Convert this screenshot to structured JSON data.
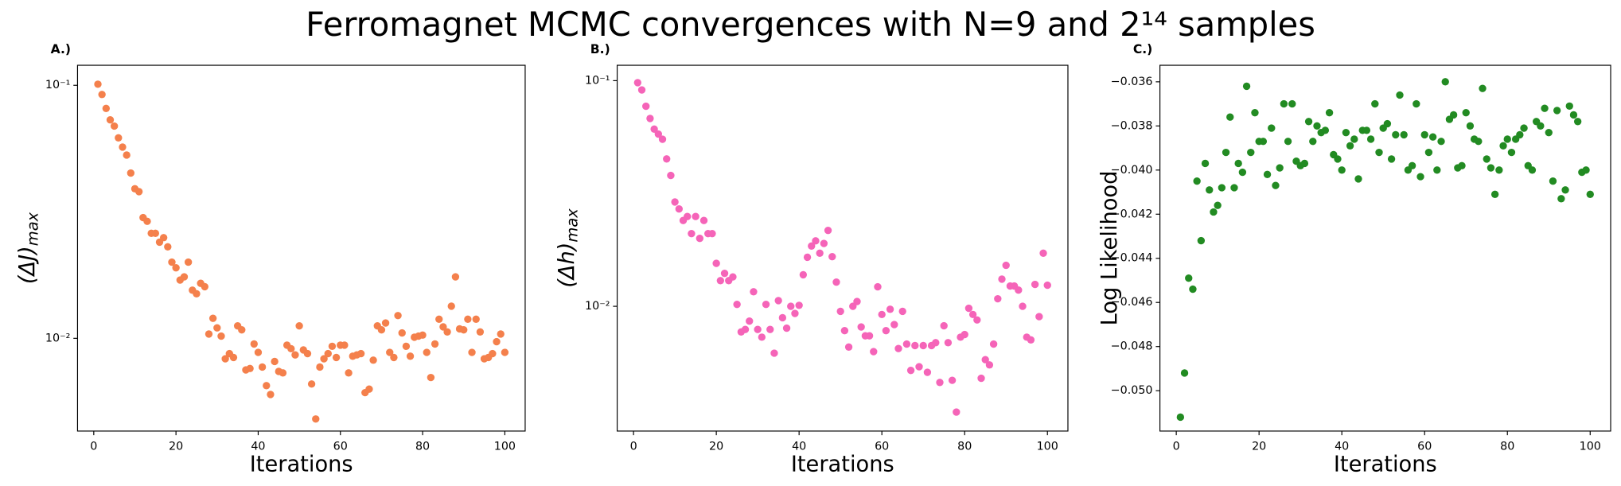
{
  "title": "Ferromagnet MCMC convergences with N=9 and 2¹⁴ samples",
  "chart_data": [
    {
      "type": "scatter",
      "panel_label": "A.)",
      "xlabel": "Iterations",
      "ylabel": "(ΔJ)",
      "ylabel_sub": "max",
      "color": "#f4804c",
      "log_y": true,
      "xlim": [
        -3.95,
        104.95
      ],
      "xticks": [
        0,
        20,
        40,
        60,
        80,
        100
      ],
      "ylim": [
        0.0043,
        0.12
      ],
      "yticks": [
        {
          "value": 0.1,
          "label": "10⁻¹"
        },
        {
          "value": 0.01,
          "label": "10⁻²"
        }
      ],
      "x": [
        1,
        2,
        3,
        4,
        5,
        6,
        7,
        8,
        9,
        10,
        11,
        12,
        13,
        14,
        15,
        16,
        17,
        18,
        19,
        20,
        21,
        22,
        23,
        24,
        25,
        26,
        27,
        28,
        29,
        30,
        31,
        32,
        33,
        34,
        35,
        36,
        37,
        38,
        39,
        40,
        41,
        42,
        43,
        44,
        45,
        46,
        47,
        48,
        49,
        50,
        51,
        52,
        53,
        54,
        55,
        56,
        57,
        58,
        59,
        60,
        61,
        62,
        63,
        64,
        65,
        66,
        67,
        68,
        69,
        70,
        71,
        72,
        73,
        74,
        75,
        76,
        77,
        78,
        79,
        80,
        81,
        82,
        83,
        84,
        85,
        86,
        87,
        88,
        89,
        90,
        91,
        92,
        93,
        94,
        95,
        96,
        97,
        98,
        99,
        100
      ],
      "values": [
        0.101,
        0.092,
        0.081,
        0.073,
        0.069,
        0.062,
        0.057,
        0.053,
        0.045,
        0.039,
        0.038,
        0.03,
        0.029,
        0.026,
        0.026,
        0.024,
        0.025,
        0.023,
        0.02,
        0.019,
        0.017,
        0.0175,
        0.02,
        0.0155,
        0.015,
        0.0165,
        0.016,
        0.0104,
        0.012,
        0.011,
        0.0102,
        0.0083,
        0.0087,
        0.0084,
        0.0112,
        0.0108,
        0.0075,
        0.0076,
        0.0095,
        0.0088,
        0.0077,
        0.0065,
        0.006,
        0.0081,
        0.0074,
        0.0073,
        0.0094,
        0.0091,
        0.0086,
        0.0112,
        0.009,
        0.0087,
        0.0066,
        0.0048,
        0.0077,
        0.0083,
        0.0087,
        0.0093,
        0.0084,
        0.0094,
        0.0094,
        0.0073,
        0.0085,
        0.0086,
        0.0087,
        0.0061,
        0.0063,
        0.0082,
        0.0112,
        0.0108,
        0.0115,
        0.0088,
        0.0084,
        0.0123,
        0.0105,
        0.0093,
        0.0085,
        0.0101,
        0.0102,
        0.0103,
        0.0088,
        0.007,
        0.0095,
        0.0119,
        0.0111,
        0.0106,
        0.0134,
        0.0175,
        0.0109,
        0.0108,
        0.0119,
        0.0088,
        0.0119,
        0.0106,
        0.0083,
        0.0084,
        0.0087,
        0.0097,
        0.0104,
        0.0088
      ]
    },
    {
      "type": "scatter",
      "panel_label": "B.)",
      "xlabel": "Iterations",
      "ylabel": "(Δh)",
      "ylabel_sub": "max",
      "color": "#f564b8",
      "log_y": true,
      "xlim": [
        -3.95,
        104.95
      ],
      "xticks": [
        0,
        20,
        40,
        60,
        80,
        100
      ],
      "ylim": [
        0.0028,
        0.117
      ],
      "yticks": [
        {
          "value": 0.1,
          "label": "10⁻¹"
        },
        {
          "value": 0.01,
          "label": "10⁻²"
        }
      ],
      "x": [
        1,
        2,
        3,
        4,
        5,
        6,
        7,
        8,
        9,
        10,
        11,
        12,
        13,
        14,
        15,
        16,
        17,
        18,
        19,
        20,
        21,
        22,
        23,
        24,
        25,
        26,
        27,
        28,
        29,
        30,
        31,
        32,
        33,
        34,
        35,
        36,
        37,
        38,
        39,
        40,
        41,
        42,
        43,
        44,
        45,
        46,
        47,
        48,
        49,
        50,
        51,
        52,
        53,
        54,
        55,
        56,
        57,
        58,
        59,
        60,
        61,
        62,
        63,
        64,
        65,
        66,
        67,
        68,
        69,
        70,
        71,
        72,
        73,
        74,
        75,
        76,
        77,
        78,
        79,
        80,
        81,
        82,
        83,
        84,
        85,
        86,
        87,
        88,
        89,
        90,
        91,
        92,
        93,
        94,
        95,
        96,
        97,
        98,
        99,
        100
      ],
      "values": [
        0.098,
        0.091,
        0.077,
        0.068,
        0.061,
        0.058,
        0.055,
        0.045,
        0.038,
        0.029,
        0.027,
        0.024,
        0.025,
        0.021,
        0.025,
        0.02,
        0.024,
        0.021,
        0.021,
        0.0155,
        0.013,
        0.014,
        0.013,
        0.0135,
        0.0102,
        0.0077,
        0.0079,
        0.0086,
        0.0116,
        0.0079,
        0.0073,
        0.0102,
        0.0079,
        0.0062,
        0.0106,
        0.0089,
        0.008,
        0.01,
        0.0093,
        0.0101,
        0.0138,
        0.0165,
        0.0185,
        0.0195,
        0.0172,
        0.019,
        0.0217,
        0.0166,
        0.0128,
        0.0095,
        0.0078,
        0.0066,
        0.01,
        0.0105,
        0.0081,
        0.0074,
        0.0074,
        0.0063,
        0.0122,
        0.0092,
        0.0078,
        0.0097,
        0.0083,
        0.0065,
        0.0095,
        0.0068,
        0.0052,
        0.0067,
        0.0054,
        0.0067,
        0.0051,
        0.0067,
        0.0069,
        0.0046,
        0.0082,
        0.0069,
        0.0047,
        0.0034,
        0.0073,
        0.0075,
        0.0098,
        0.0092,
        0.0087,
        0.0048,
        0.0058,
        0.0055,
        0.0068,
        0.0108,
        0.0132,
        0.0152,
        0.0123,
        0.0123,
        0.0118,
        0.01,
        0.0073,
        0.0071,
        0.0125,
        0.009,
        0.0172,
        0.0124
      ]
    },
    {
      "type": "scatter",
      "panel_label": "C.)",
      "xlabel": "Iterations",
      "ylabel": "Log Likelihood",
      "color": "#228b22",
      "log_y": false,
      "xlim": [
        -3.95,
        104.95
      ],
      "xticks": [
        0,
        20,
        40,
        60,
        80,
        100
      ],
      "ylim": [
        -0.05183,
        -0.03525
      ],
      "yticks": [
        {
          "value": -0.036,
          "label": "−0.036"
        },
        {
          "value": -0.038,
          "label": "−0.038"
        },
        {
          "value": -0.04,
          "label": "−0.040"
        },
        {
          "value": -0.042,
          "label": "−0.042"
        },
        {
          "value": -0.044,
          "label": "−0.044"
        },
        {
          "value": -0.046,
          "label": "−0.046"
        },
        {
          "value": -0.048,
          "label": "−0.048"
        },
        {
          "value": -0.05,
          "label": "−0.050"
        }
      ],
      "x": [
        1,
        2,
        3,
        4,
        5,
        6,
        7,
        8,
        9,
        10,
        11,
        12,
        13,
        14,
        15,
        16,
        17,
        18,
        19,
        20,
        21,
        22,
        23,
        24,
        25,
        26,
        27,
        28,
        29,
        30,
        31,
        32,
        33,
        34,
        35,
        36,
        37,
        38,
        39,
        40,
        41,
        42,
        43,
        44,
        45,
        46,
        47,
        48,
        49,
        50,
        51,
        52,
        53,
        54,
        55,
        56,
        57,
        58,
        59,
        60,
        61,
        62,
        63,
        64,
        65,
        66,
        67,
        68,
        69,
        70,
        71,
        72,
        73,
        74,
        75,
        76,
        77,
        78,
        79,
        80,
        81,
        82,
        83,
        84,
        85,
        86,
        87,
        88,
        89,
        90,
        91,
        92,
        93,
        94,
        95,
        96,
        97,
        98,
        99,
        100
      ],
      "values": [
        -0.0512,
        -0.0492,
        -0.0449,
        -0.0454,
        -0.0405,
        -0.0432,
        -0.0397,
        -0.0409,
        -0.0419,
        -0.0416,
        -0.0408,
        -0.0392,
        -0.0376,
        -0.0408,
        -0.0397,
        -0.0401,
        -0.0362,
        -0.0392,
        -0.0374,
        -0.0387,
        -0.0387,
        -0.0402,
        -0.0381,
        -0.0407,
        -0.0399,
        -0.037,
        -0.0387,
        -0.037,
        -0.0396,
        -0.0398,
        -0.0397,
        -0.0378,
        -0.0387,
        -0.038,
        -0.0383,
        -0.0382,
        -0.0374,
        -0.0393,
        -0.0395,
        -0.04,
        -0.0383,
        -0.0389,
        -0.0386,
        -0.0404,
        -0.0382,
        -0.0382,
        -0.0386,
        -0.037,
        -0.0392,
        -0.0381,
        -0.0379,
        -0.0395,
        -0.0384,
        -0.0366,
        -0.0384,
        -0.04,
        -0.0398,
        -0.037,
        -0.0403,
        -0.0384,
        -0.0392,
        -0.0385,
        -0.04,
        -0.0387,
        -0.036,
        -0.0377,
        -0.0375,
        -0.0399,
        -0.0398,
        -0.0374,
        -0.038,
        -0.0386,
        -0.0387,
        -0.0363,
        -0.0395,
        -0.0399,
        -0.0411,
        -0.04,
        -0.0389,
        -0.0386,
        -0.0392,
        -0.0386,
        -0.0384,
        -0.0381,
        -0.0398,
        -0.04,
        -0.0378,
        -0.038,
        -0.0372,
        -0.0383,
        -0.0405,
        -0.0373,
        -0.0413,
        -0.0409,
        -0.0371,
        -0.0375,
        -0.0378,
        -0.0401,
        -0.04,
        -0.0411
      ]
    }
  ]
}
